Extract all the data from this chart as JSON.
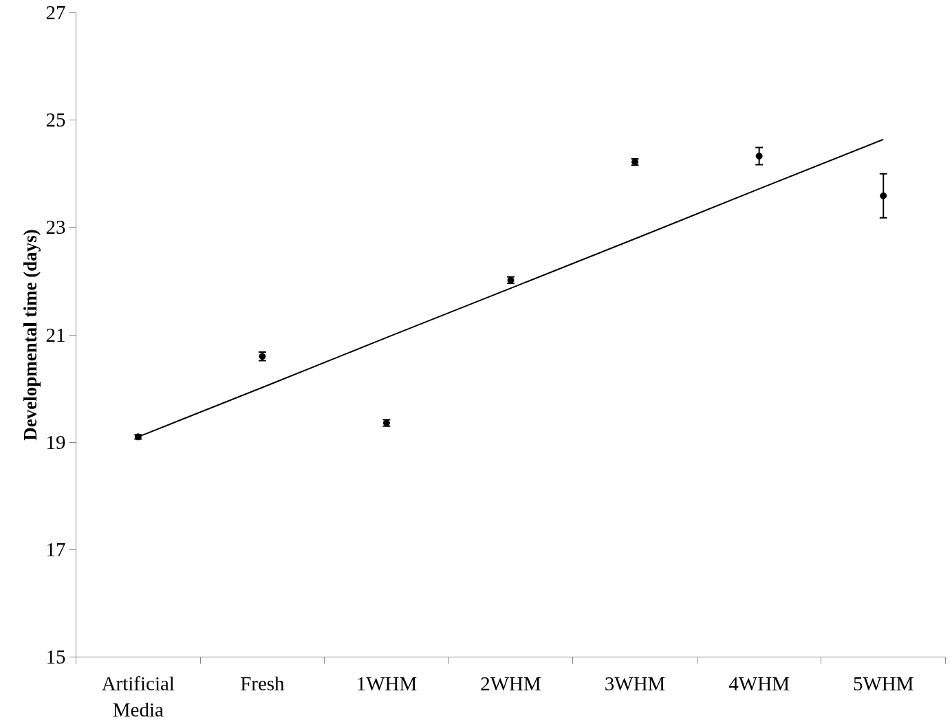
{
  "chart_data": {
    "type": "scatter",
    "ylabel": "Developmental time (days)",
    "categories": [
      "Artificial Media",
      "Fresh",
      "1WHM",
      "2WHM",
      "3WHM",
      "4WHM",
      "5WHM"
    ],
    "series": [
      {
        "color": "#000000",
        "values": [
          19.1,
          20.6,
          19.36,
          22.02,
          24.22,
          24.33,
          23.59
        ],
        "errors": [
          0.04,
          0.08,
          0.06,
          0.06,
          0.06,
          0.16,
          0.41
        ]
      },
      {
        "type": "line",
        "marker": "none",
        "color": "#000000",
        "values": [
          19.1,
          20.02,
          20.95,
          21.87,
          22.79,
          23.72,
          24.64
        ]
      }
    ],
    "ylim": [
      15,
      27
    ],
    "yticks": [
      15,
      17,
      19,
      21,
      23,
      25,
      27
    ],
    "marker": "circle",
    "grid": false
  }
}
